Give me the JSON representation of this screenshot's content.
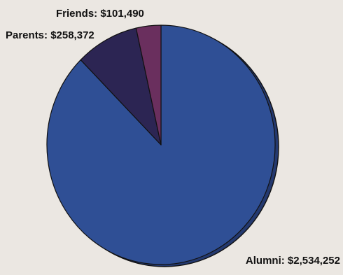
{
  "chart_data": {
    "type": "pie",
    "title": "",
    "slices": [
      {
        "label": "Alumni",
        "value": 2534252,
        "display": "Alumni: $2,534,252",
        "color": "#2f4f95"
      },
      {
        "label": "Parents",
        "value": 258372,
        "display": "Parents: $258,372",
        "color": "#2c2553"
      },
      {
        "label": "Friends",
        "value": 101490,
        "display": "Friends: $101,490",
        "color": "#6a2f5e"
      }
    ],
    "start_angle": "12 o'clock",
    "direction": "clockwise",
    "style": "3D edge with dark outline"
  }
}
